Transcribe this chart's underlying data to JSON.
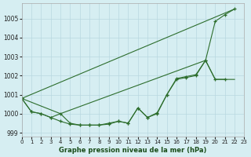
{
  "title": "Graphe pression niveau de la mer (hPa)",
  "bg_color": "#d6eef2",
  "grid_color": "#b8d8e0",
  "line_color": "#2d6e2d",
  "xlim": [
    0,
    23
  ],
  "ylim": [
    998.8,
    1005.8
  ],
  "yticks": [
    999,
    1000,
    1001,
    1002,
    1003,
    1004,
    1005
  ],
  "xticks": [
    0,
    1,
    2,
    3,
    4,
    5,
    6,
    7,
    8,
    9,
    10,
    11,
    12,
    13,
    14,
    15,
    16,
    17,
    18,
    19,
    20,
    21,
    22,
    23
  ],
  "line1_x": [
    0,
    1,
    2,
    3,
    4,
    5,
    6,
    7,
    8,
    9,
    10,
    11,
    12,
    13,
    14,
    15,
    16,
    17,
    18,
    19,
    20,
    21
  ],
  "line1_y": [
    1000.8,
    1000.1,
    1000.0,
    999.8,
    1000.0,
    999.5,
    999.4,
    999.4,
    999.4,
    999.5,
    999.6,
    999.5,
    1000.3,
    999.8,
    1000.0,
    1001.0,
    1001.8,
    1001.9,
    1002.0,
    1002.8,
    1001.8,
    1001.8
  ],
  "line2_x": [
    0,
    1,
    2,
    3,
    4,
    5,
    6,
    7,
    8,
    9,
    10,
    11,
    12,
    13,
    14,
    15,
    16,
    17,
    18,
    19,
    20,
    21,
    22
  ],
  "line2_y": [
    1000.8,
    1000.1,
    1000.0,
    999.8,
    999.6,
    999.45,
    999.4,
    999.4,
    999.4,
    999.45,
    999.6,
    999.5,
    1000.3,
    999.8,
    1000.05,
    1001.0,
    1001.85,
    1001.95,
    1002.05,
    1002.8,
    1004.85,
    1005.2,
    1005.5
  ],
  "line3_x": [
    0,
    4,
    19,
    20,
    21,
    22
  ],
  "line3_y": [
    1000.8,
    1000.0,
    1002.8,
    1001.8,
    1001.8,
    1001.8
  ],
  "line4_x": [
    0,
    22
  ],
  "line4_y": [
    1000.8,
    1005.5
  ]
}
